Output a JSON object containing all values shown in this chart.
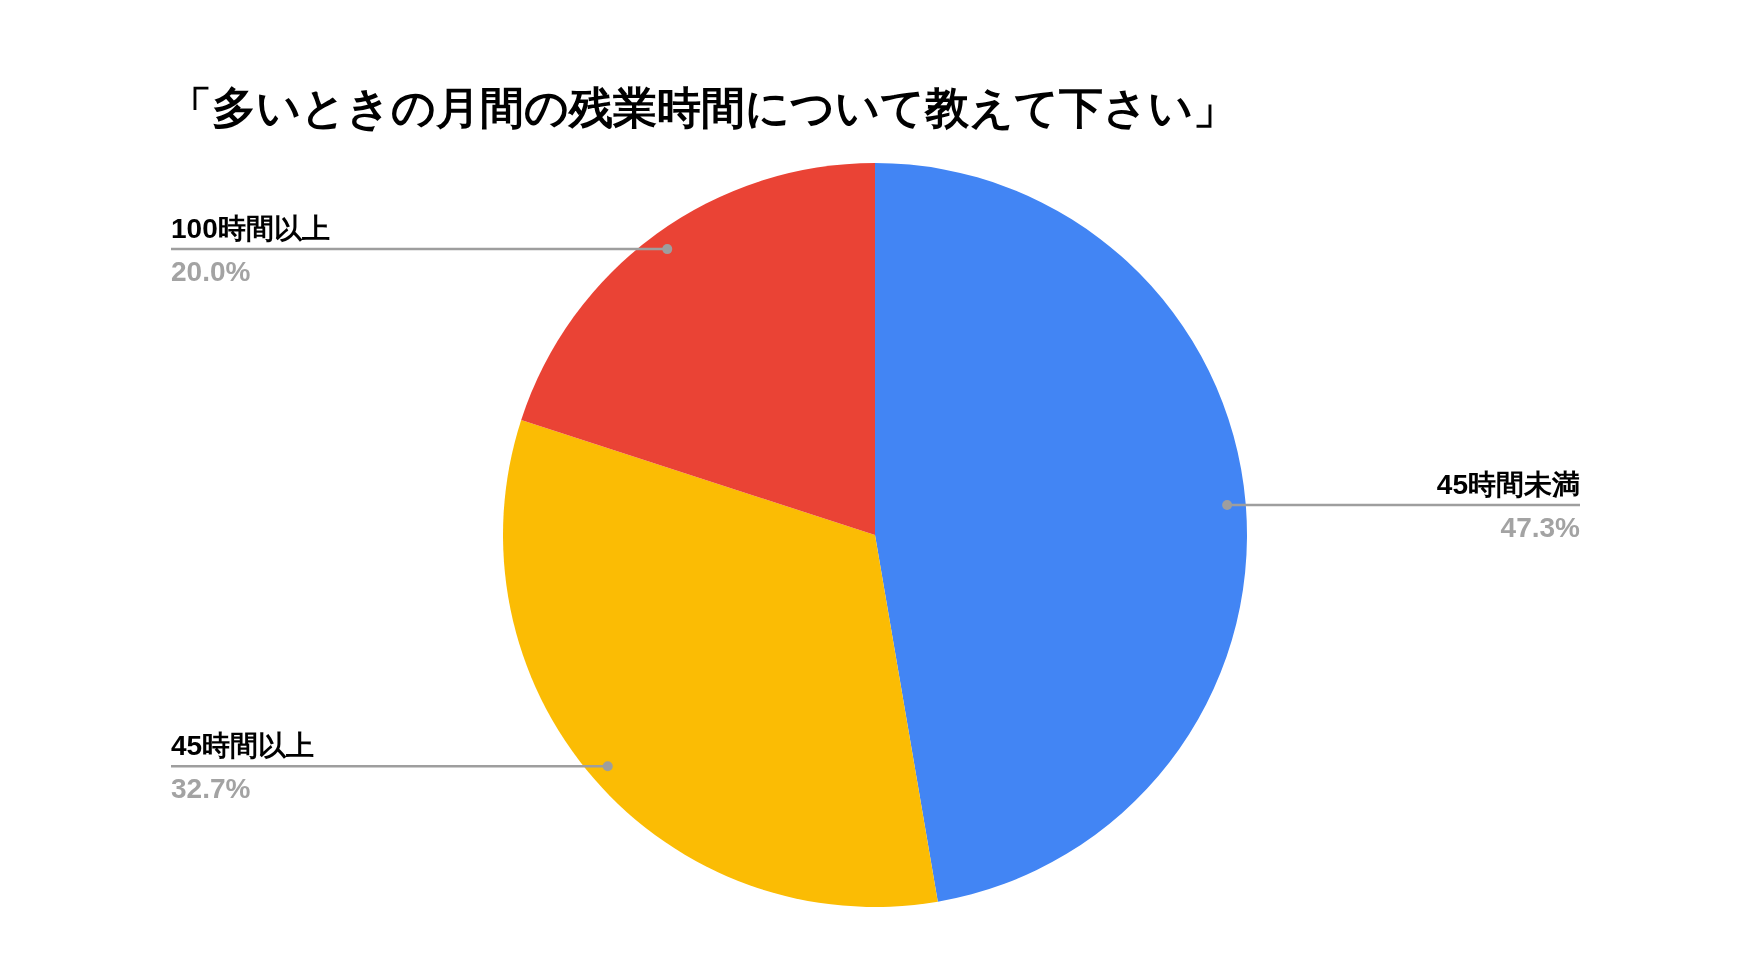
{
  "chart_data": {
    "type": "pie",
    "title": "「多いときの月間の残業時間について教えて下さい」",
    "categories": [
      "45時間未満",
      "45時間以上",
      "100時間以上"
    ],
    "values": [
      47.3,
      32.7,
      20.0
    ],
    "colors": [
      "#4285f4",
      "#fbbc04",
      "#ea4335"
    ],
    "value_labels": [
      "47.3%",
      "32.7%",
      "20.0%"
    ]
  }
}
